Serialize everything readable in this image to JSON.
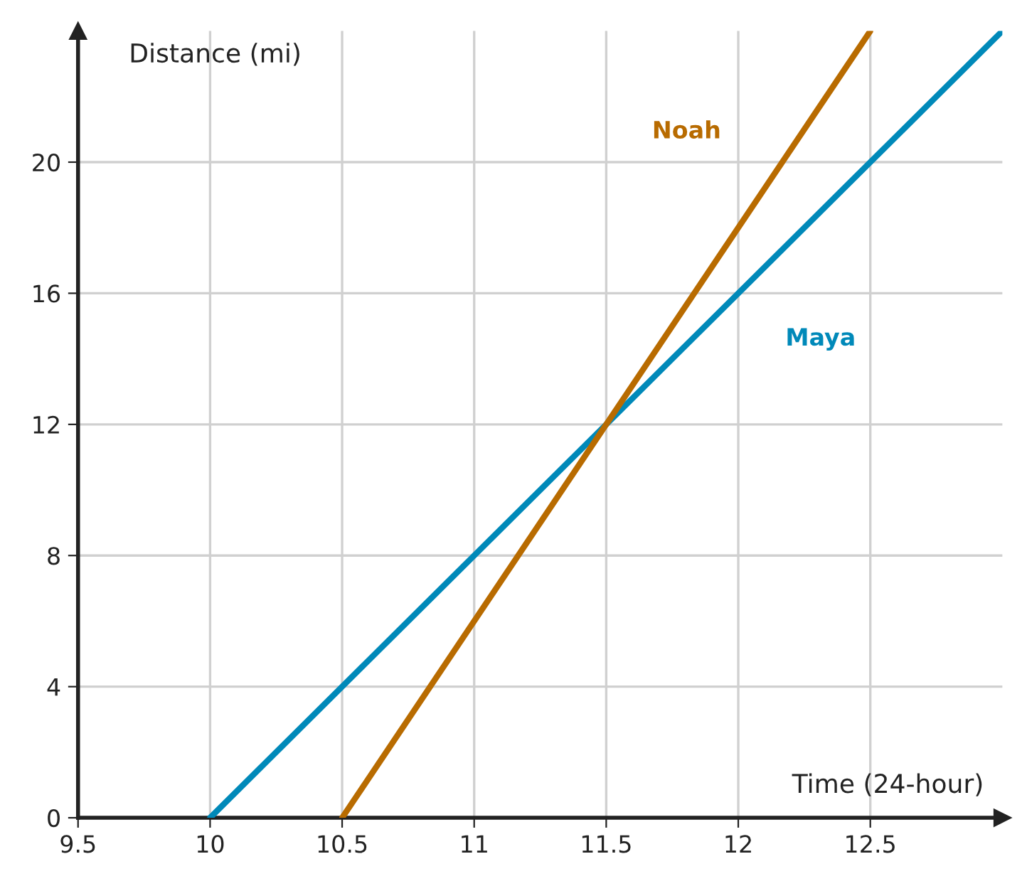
{
  "chart_data": {
    "type": "line",
    "xlabel": "Time (24-hour)",
    "ylabel": "Distance (mi)",
    "series": [
      {
        "name": "Maya",
        "color": "#0089b9",
        "x": [
          10,
          13
        ],
        "values": [
          0,
          24
        ]
      },
      {
        "name": "Noah",
        "color": "#b86b00",
        "x": [
          10.5,
          12.5
        ],
        "values": [
          0,
          24
        ]
      }
    ],
    "xlim": [
      9.5,
      13
    ],
    "xticks": [
      9.5,
      10,
      10.5,
      11,
      11.5,
      12,
      12.5
    ],
    "ylim": [
      0,
      24
    ],
    "yticks": [
      0,
      4,
      8,
      12,
      16,
      20
    ],
    "grid": true,
    "legend": false,
    "marker": "none",
    "line_style": "solid"
  }
}
